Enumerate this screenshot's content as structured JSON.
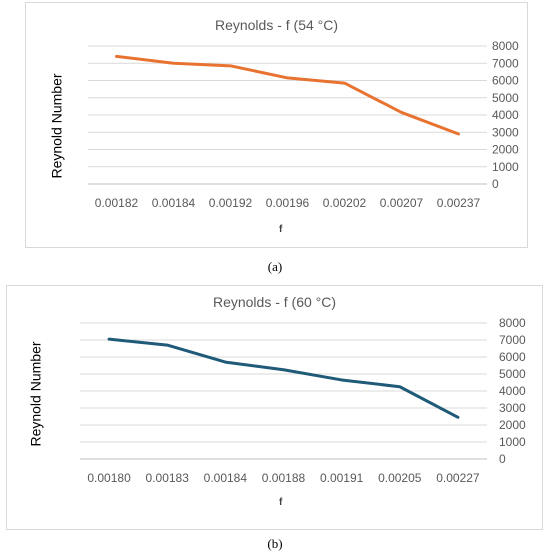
{
  "chart_data": [
    {
      "type": "line",
      "title": "Reynolds  - f  (54 °C)",
      "xlabel": "f",
      "ylabel": "Reynold Number",
      "categories": [
        "0.00182",
        "0.00184",
        "0.00192",
        "0.00196",
        "0.00202",
        "0.00207",
        "0.00237"
      ],
      "series": [
        {
          "values": [
            7400,
            7000,
            6850,
            6150,
            5850,
            4150,
            2900
          ],
          "color": "#E87331"
        }
      ],
      "y_ticks": [
        "0",
        "1000",
        "2000",
        "3000",
        "4000",
        "5000",
        "6000",
        "7000",
        "8000"
      ],
      "ylim": [
        0,
        8000
      ],
      "y_axis_side": "right",
      "grid": "horizontal",
      "caption": "(a)"
    },
    {
      "type": "line",
      "title": "Reynolds -  f  (60 °C)",
      "xlabel": "f",
      "ylabel": "Reynold Number",
      "categories": [
        "0.00180",
        "0.00183",
        "0.00184",
        "0.00188",
        "0.00191",
        "0.00205",
        "0.00227"
      ],
      "series": [
        {
          "values": [
            7050,
            6700,
            5700,
            5250,
            4650,
            4250,
            2450
          ],
          "color": "#1F5A78"
        }
      ],
      "y_ticks": [
        "0",
        "1000",
        "2000",
        "3000",
        "4000",
        "5000",
        "6000",
        "7000",
        "8000"
      ],
      "ylim": [
        0,
        8000
      ],
      "y_axis_side": "right",
      "grid": "horizontal",
      "caption": "(b)"
    }
  ]
}
